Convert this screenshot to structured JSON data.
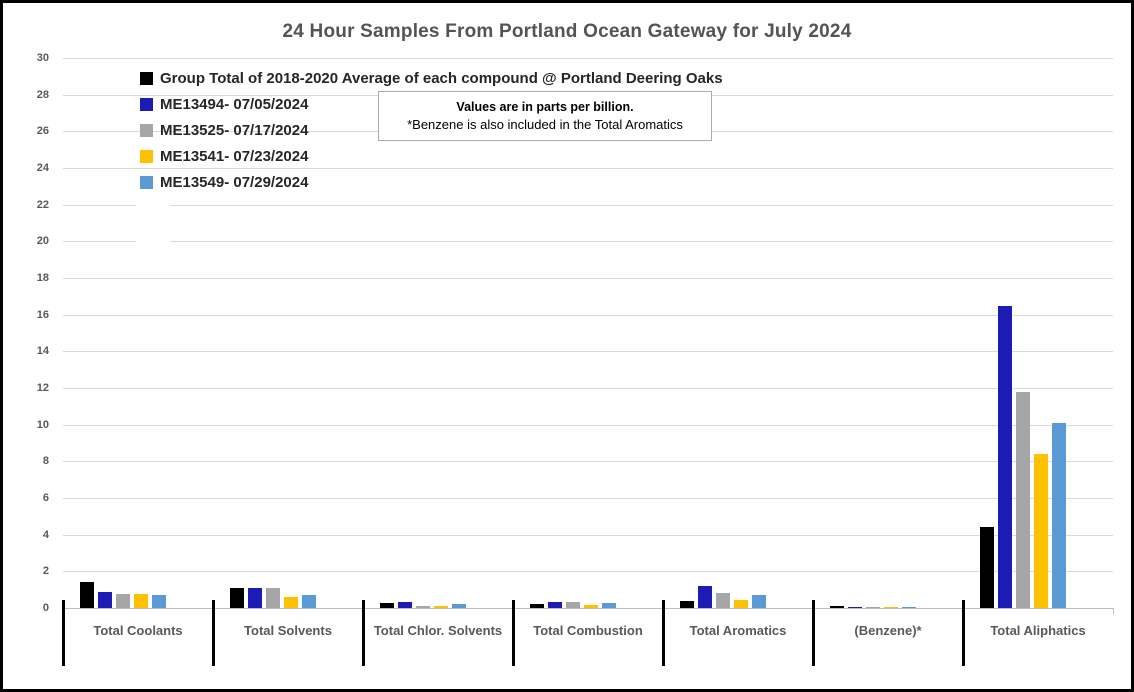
{
  "title": "24 Hour Samples From Portland Ocean Gateway for July 2024",
  "note": {
    "line1": "Values are in parts per billion.",
    "line2": "*Benzene is also included in the Total Aromatics"
  },
  "chart_data": {
    "type": "bar",
    "title": "24 Hour Samples From Portland Ocean Gateway for July 2024",
    "value_unit": "parts per billion",
    "categories": [
      "Total Coolants",
      "Total Solvents",
      "Total Chlor. Solvents",
      "Total Combustion",
      "Total Aromatics",
      "(Benzene)*",
      "Total Aliphatics"
    ],
    "series": [
      {
        "name": "Group Total of 2018-2020 Average of each compound @ Portland Deering Oaks",
        "color": "#000000",
        "values": [
          1.4,
          1.1,
          0.25,
          0.2,
          0.4,
          0.13,
          4.4
        ]
      },
      {
        "name": "ME13494- 07/05/2024",
        "color": "#1c1cb4",
        "values": [
          0.9,
          1.1,
          0.35,
          0.35,
          1.2,
          0.08,
          16.5
        ]
      },
      {
        "name": "ME13525- 07/17/2024",
        "color": "#a6a6a6",
        "values": [
          0.75,
          1.1,
          0.1,
          0.35,
          0.8,
          0.05,
          11.8
        ]
      },
      {
        "name": "ME13541- 07/23/2024",
        "color": "#ffc000",
        "values": [
          0.75,
          0.6,
          0.1,
          0.15,
          0.45,
          0.06,
          8.4
        ]
      },
      {
        "name": "ME13549- 07/29/2024",
        "color": "#5b9bd5",
        "values": [
          0.7,
          0.7,
          0.2,
          0.25,
          0.7,
          0.05,
          10.1
        ]
      }
    ],
    "ylim": [
      0,
      30
    ],
    "ytick_step": 2,
    "grid": true,
    "legend_position": "top-left",
    "annotations": [
      "Values are in parts per billion.",
      "*Benzene is also included in the Total Aromatics"
    ]
  },
  "colors": {
    "grid": "#d9d9d9",
    "axis": "#bfbfbf",
    "axis_text": "#595959",
    "title_text": "#545454",
    "legend_text": "#262626",
    "separator": "#000000"
  }
}
